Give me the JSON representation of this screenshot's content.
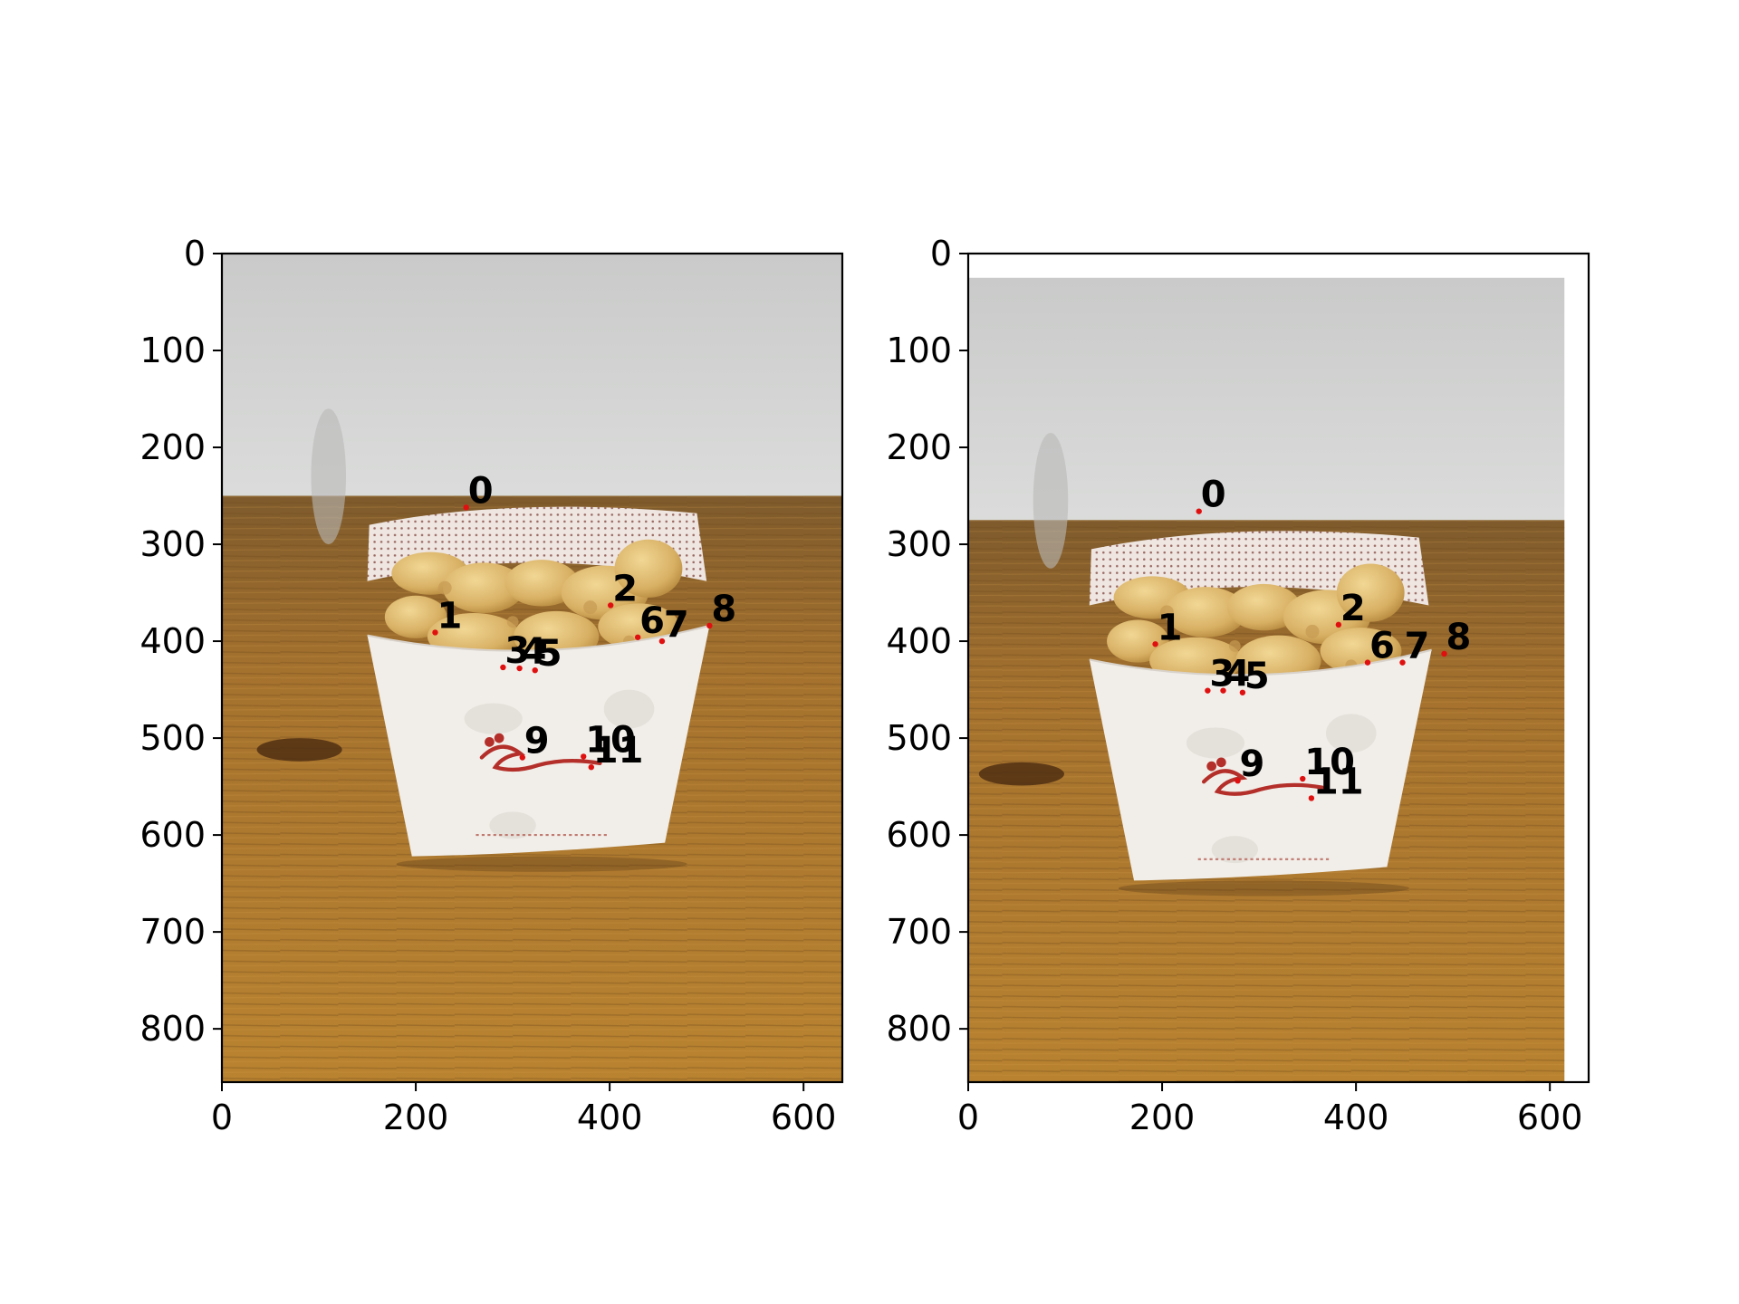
{
  "chart_data": [
    {
      "type": "scatter",
      "title": "",
      "xlabel": "",
      "ylabel": "",
      "xlim": [
        0,
        640
      ],
      "ylim": [
        855,
        0
      ],
      "xticks": [
        0,
        200,
        400,
        600
      ],
      "yticks": [
        0,
        100,
        200,
        300,
        400,
        500,
        600,
        700,
        800
      ],
      "grid": false,
      "legend": "none",
      "point_color": "#e01010",
      "label_color": "#000000",
      "background": "photo: waffle fries in a Chick-fil-A paper carton on a wooden table, wall behind",
      "points": [
        {
          "label": "0",
          "x": 252,
          "y": 262
        },
        {
          "label": "1",
          "x": 220,
          "y": 391
        },
        {
          "label": "2",
          "x": 401,
          "y": 363
        },
        {
          "label": "3",
          "x": 290,
          "y": 427
        },
        {
          "label": "4",
          "x": 307,
          "y": 428
        },
        {
          "label": "5",
          "x": 323,
          "y": 430
        },
        {
          "label": "6",
          "x": 429,
          "y": 396
        },
        {
          "label": "7",
          "x": 454,
          "y": 400
        },
        {
          "label": "8",
          "x": 503,
          "y": 384
        },
        {
          "label": "9",
          "x": 310,
          "y": 520
        },
        {
          "label": "10",
          "x": 373,
          "y": 519
        },
        {
          "label": "11",
          "x": 381,
          "y": 530
        }
      ]
    },
    {
      "type": "scatter",
      "title": "",
      "xlabel": "",
      "ylabel": "",
      "xlim": [
        0,
        640
      ],
      "ylim": [
        855,
        0
      ],
      "xticks": [
        0,
        200,
        400,
        600
      ],
      "yticks": [
        0,
        100,
        200,
        300,
        400,
        500,
        600,
        700,
        800
      ],
      "grid": false,
      "legend": "none",
      "point_color": "#e01010",
      "label_color": "#000000",
      "background": "photo: same carton of waffle fries seen from a slightly different viewpoint",
      "points": [
        {
          "label": "0",
          "x": 238,
          "y": 266
        },
        {
          "label": "1",
          "x": 193,
          "y": 403
        },
        {
          "label": "2",
          "x": 382,
          "y": 383
        },
        {
          "label": "3",
          "x": 247,
          "y": 451
        },
        {
          "label": "4",
          "x": 263,
          "y": 451
        },
        {
          "label": "5",
          "x": 283,
          "y": 453
        },
        {
          "label": "6",
          "x": 412,
          "y": 422
        },
        {
          "label": "7",
          "x": 448,
          "y": 422
        },
        {
          "label": "8",
          "x": 491,
          "y": 413
        },
        {
          "label": "9",
          "x": 278,
          "y": 544
        },
        {
          "label": "10",
          "x": 345,
          "y": 542
        },
        {
          "label": "11",
          "x": 354,
          "y": 562
        }
      ]
    }
  ]
}
